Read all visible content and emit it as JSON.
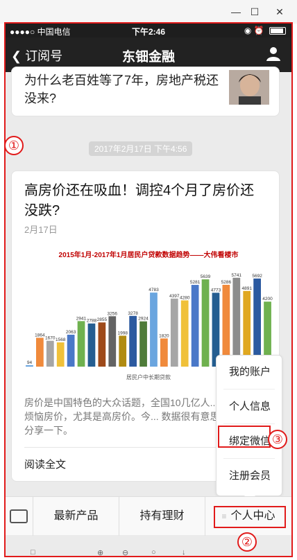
{
  "status": {
    "carrier": "●●●●○ 中国电信",
    "time": "下午2:46",
    "right": "◉ ⏰"
  },
  "nav": {
    "back_label": "订阅号",
    "title": "东钿金融"
  },
  "feed": {
    "top_card_title": "为什么老百姓等了7年，房地产税还没来?",
    "time_divider": "2017年2月17日 下午4:56",
    "main_card": {
      "title": "高房价还在吸血！调控4个月了房价还没跌?",
      "date": "2月17日",
      "description": "房价是中国特色的大众话题，全国10几亿人... 话的基本都烦恼房价，尤其是高房价。今... 数据很有意思，想跟大家分享一下。",
      "read_all": "阅读全文"
    }
  },
  "menu": {
    "items": [
      "我的账户",
      "个人信息",
      "绑定微信",
      "注册会员"
    ]
  },
  "bottom": {
    "tabs": [
      "最新产品",
      "持有理财",
      "个人中心"
    ]
  },
  "annotations": {
    "labels": [
      "①",
      "②",
      "③"
    ]
  },
  "chart_data": {
    "type": "bar",
    "title": "2015年1月-2017年1月居民户贷款数据趋势——大伟看楼市",
    "xlabel": "居民户中长期贷款",
    "values": [
      94,
      1864,
      1670,
      1568,
      2063,
      2941,
      2788,
      2855,
      3256,
      1998,
      3278,
      2924,
      4783,
      1820,
      4397,
      4280,
      5281,
      5639,
      4773,
      5286,
      5741,
      4891,
      5692,
      4200
    ],
    "ylim": [
      0,
      6000
    ],
    "colors": [
      "#6aa5df",
      "#f08a3c",
      "#a6a6a6",
      "#f0c13a",
      "#4a78c8",
      "#6fb14f",
      "#255e91",
      "#9e4a1a",
      "#636363",
      "#b08b12",
      "#2c5aa0",
      "#4f7c3a",
      "#6aa5df",
      "#f08a3c",
      "#a6a6a6",
      "#f0c13a",
      "#4a78c8",
      "#6fb14f",
      "#255e91",
      "#f08a3c",
      "#8c8c8c",
      "#e0a820",
      "#2c5aa0",
      "#6fb14f"
    ]
  }
}
